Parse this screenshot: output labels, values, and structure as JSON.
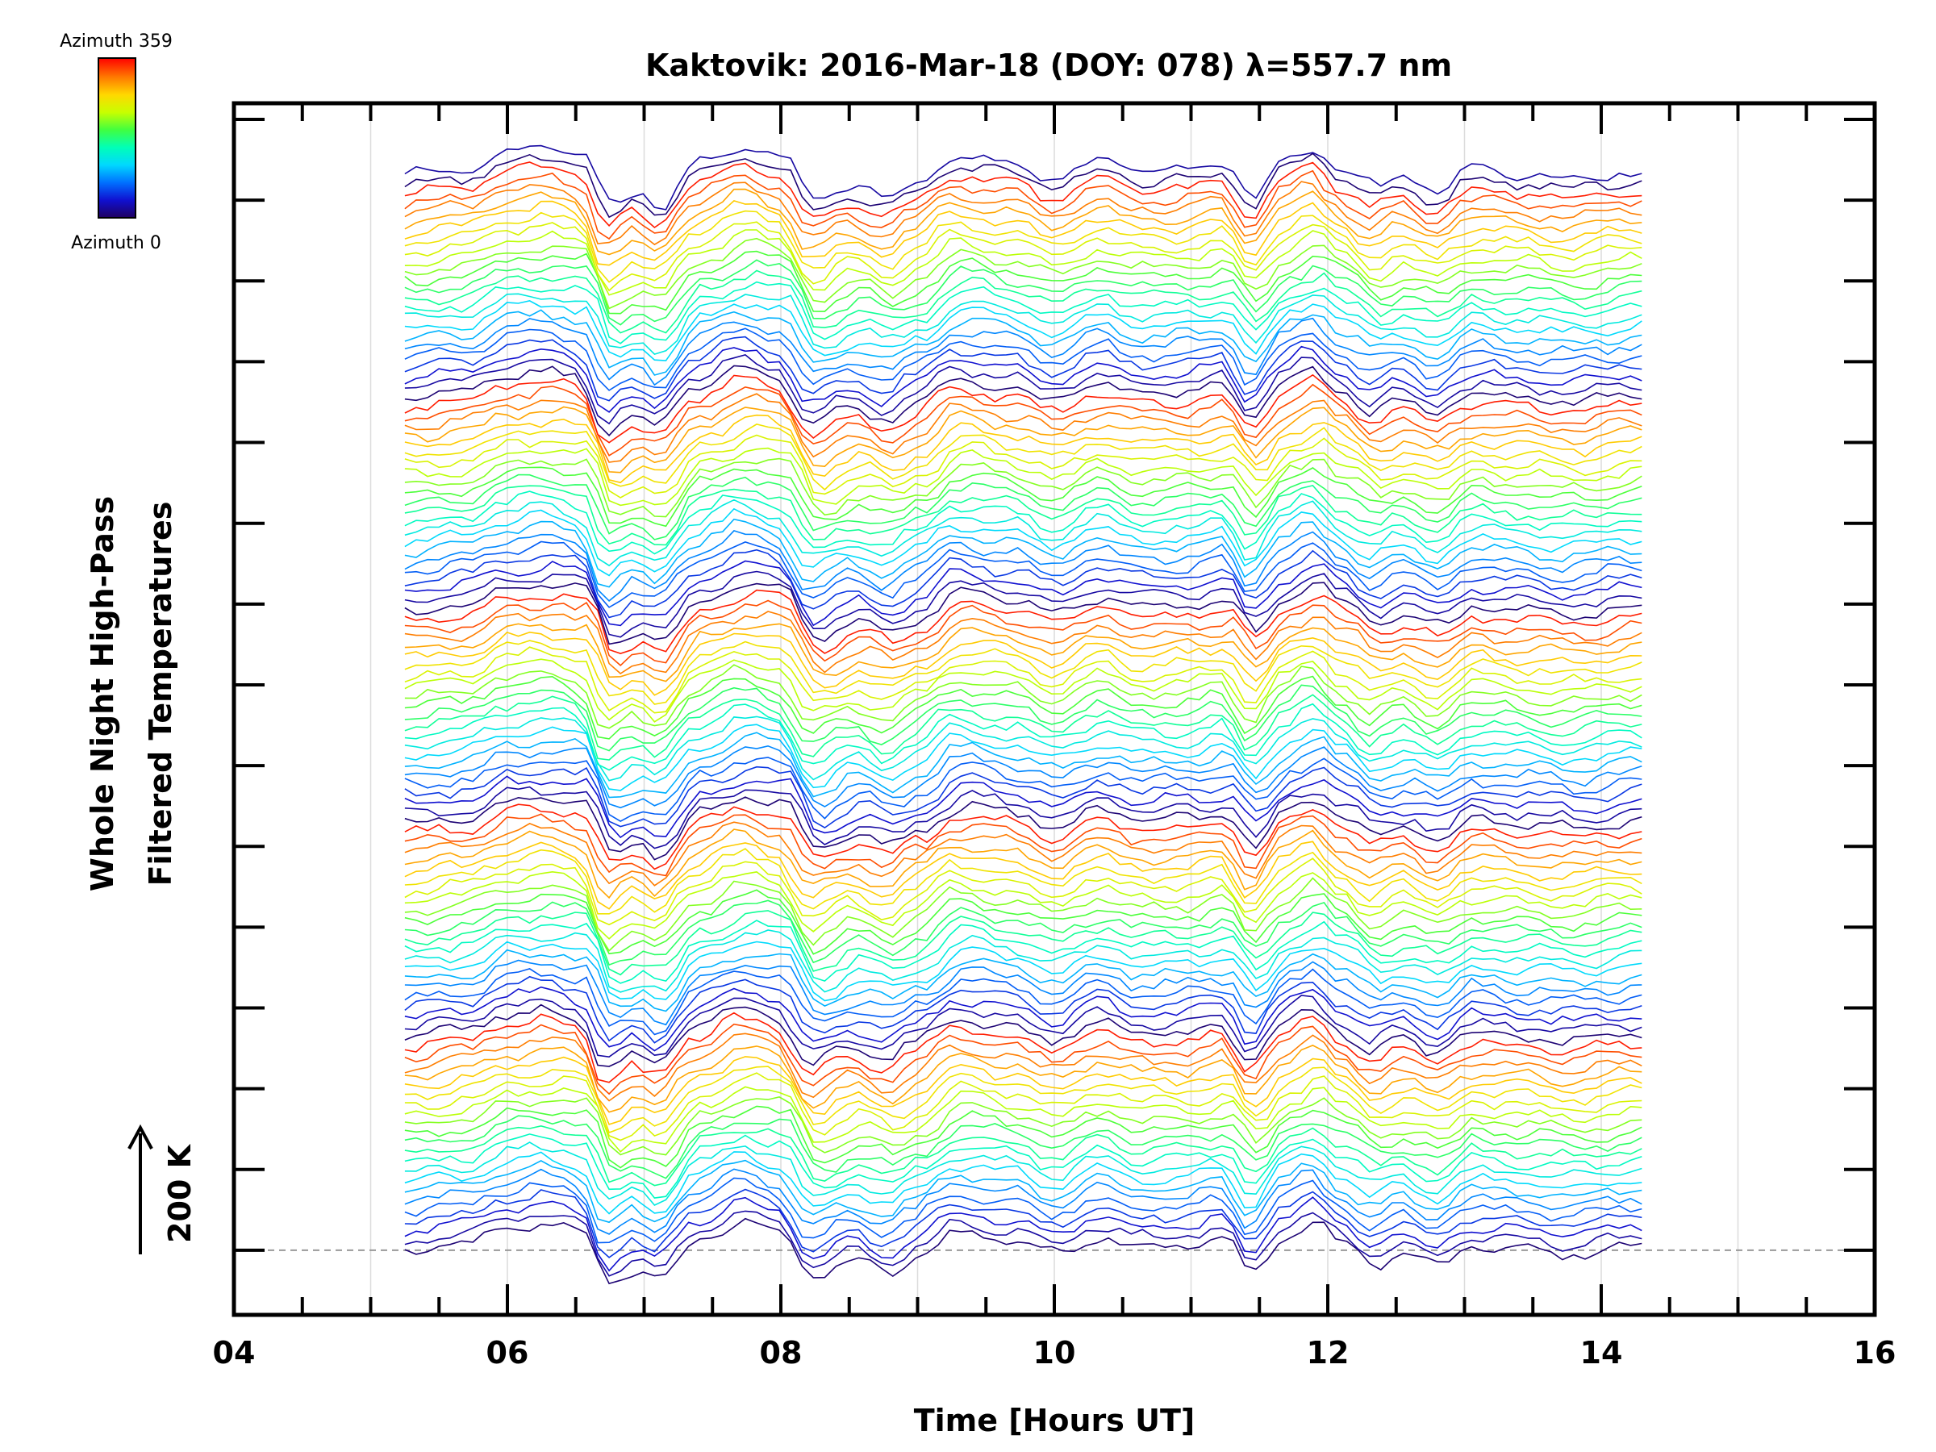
{
  "chart_data": {
    "type": "line",
    "title": "Kaktovik: 2016-Mar-18 (DOY: 078) λ=557.7 nm",
    "xlabel": "Time [Hours UT]",
    "ylabel_line1": "Whole Night High-Pass",
    "ylabel_line2": "Filtered Temperatures",
    "scale_label": "200 K",
    "xlim": [
      4,
      16
    ],
    "x_ticks": [
      "04",
      "06",
      "08",
      "10",
      "12",
      "14",
      "16"
    ],
    "x_tick_values": [
      4,
      6,
      8,
      10,
      12,
      14,
      16
    ],
    "x_minor_step": 0.5,
    "ylim": [
      -0.8,
      14.2
    ],
    "y_major_ticks": [
      0,
      1,
      2,
      3,
      4,
      5,
      6,
      7,
      8,
      9,
      10,
      11,
      12,
      13,
      14
    ],
    "grid": "vertical-hourly",
    "baseline_dashed_at": 0,
    "time_range": [
      5.25,
      14.3
    ],
    "sample_step_hours": 0.083,
    "series_count": 112,
    "offset_per_series": 0.12,
    "series_amplitude": 0.45,
    "colorbar": {
      "top_label": "Azimuth 359",
      "bottom_label": "Azimuth 0",
      "placement": "top-left",
      "colors": [
        "#ff0000",
        "#ff7a00",
        "#ffd800",
        "#c8ff00",
        "#40ff40",
        "#00ffb8",
        "#00d8ff",
        "#0070ff",
        "#1010d0",
        "#200060"
      ]
    },
    "trend_features": [
      {
        "t": 5.25,
        "v": 0.0
      },
      {
        "t": 5.7,
        "v": 0.15
      },
      {
        "t": 6.0,
        "v": 0.6
      },
      {
        "t": 6.3,
        "v": 0.7
      },
      {
        "t": 6.55,
        "v": 0.55
      },
      {
        "t": 6.75,
        "v": -0.9
      },
      {
        "t": 6.95,
        "v": -0.55
      },
      {
        "t": 7.1,
        "v": -0.85
      },
      {
        "t": 7.4,
        "v": 0.3
      },
      {
        "t": 7.75,
        "v": 0.75
      },
      {
        "t": 8.0,
        "v": 0.55
      },
      {
        "t": 8.25,
        "v": -0.75
      },
      {
        "t": 8.55,
        "v": -0.3
      },
      {
        "t": 8.8,
        "v": -0.6
      },
      {
        "t": 9.0,
        "v": -0.2
      },
      {
        "t": 9.3,
        "v": 0.5
      },
      {
        "t": 9.7,
        "v": 0.3
      },
      {
        "t": 10.0,
        "v": -0.1
      },
      {
        "t": 10.35,
        "v": 0.4
      },
      {
        "t": 10.6,
        "v": 0.1
      },
      {
        "t": 11.0,
        "v": 0.15
      },
      {
        "t": 11.25,
        "v": 0.3
      },
      {
        "t": 11.45,
        "v": -0.6
      },
      {
        "t": 11.7,
        "v": 0.4
      },
      {
        "t": 11.9,
        "v": 0.75
      },
      {
        "t": 12.1,
        "v": 0.2
      },
      {
        "t": 12.35,
        "v": -0.35
      },
      {
        "t": 12.55,
        "v": -0.1
      },
      {
        "t": 12.8,
        "v": -0.45
      },
      {
        "t": 13.05,
        "v": 0.1
      },
      {
        "t": 13.4,
        "v": 0.0
      },
      {
        "t": 13.8,
        "v": -0.1
      },
      {
        "t": 14.3,
        "v": 0.1
      }
    ]
  }
}
